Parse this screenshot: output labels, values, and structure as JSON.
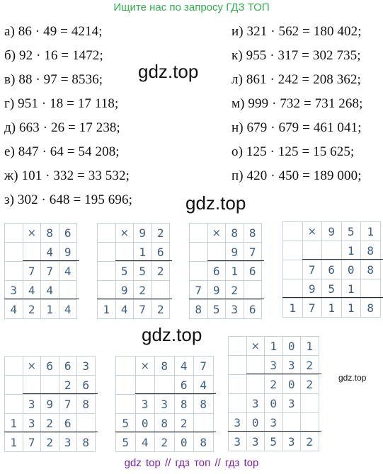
{
  "header": {
    "banner": "Ищите нас по запросу ГДЗ ТОП"
  },
  "equations_left": [
    "а) 86 · 49 = 4214;",
    "б) 92 · 16 = 1472;",
    "в) 88 · 97 = 8536;",
    "г) 951 · 18 = 17 118;",
    "д) 663 · 26 = 17 238;",
    "е) 847 · 64 = 54 208;",
    "ж) 101 · 332 = 33 532;",
    "з) 302 · 648 = 195 696;"
  ],
  "equations_right": [
    "и) 321 · 562 = 180 402;",
    "к) 955 · 317 = 302 735;",
    "л) 861 · 242 = 208 362;",
    "м) 999 · 732 = 731 268;",
    "н) 679 · 679 = 461 041;",
    "о) 125 · 125 = 15 625;",
    "п) 420 · 450 = 189 000;"
  ],
  "watermarks": {
    "main": "gdz.top",
    "small": "gdz.top"
  },
  "computations": [
    {
      "times": "×",
      "rows": [
        [
          "",
          "",
          "8",
          "6"
        ],
        [
          "",
          "",
          "4",
          "9"
        ],
        [
          "",
          "7",
          "7",
          "4"
        ],
        [
          "3",
          "4",
          "4",
          ""
        ],
        [
          "4",
          "2",
          "1",
          "4"
        ]
      ]
    },
    {
      "times": "×",
      "rows": [
        [
          "",
          "",
          "9",
          "2"
        ],
        [
          "",
          "",
          "1",
          "6"
        ],
        [
          "",
          "5",
          "5",
          "2"
        ],
        [
          "",
          "9",
          "2",
          ""
        ],
        [
          "1",
          "4",
          "7",
          "2"
        ]
      ]
    },
    {
      "times": "×",
      "rows": [
        [
          "",
          "",
          "8",
          "8"
        ],
        [
          "",
          "",
          "9",
          "7"
        ],
        [
          "",
          "6",
          "1",
          "6"
        ],
        [
          "7",
          "9",
          "2",
          ""
        ],
        [
          "8",
          "5",
          "3",
          "6"
        ]
      ]
    },
    {
      "times": "×",
      "rows": [
        [
          "",
          "",
          "9",
          "5",
          "1"
        ],
        [
          "",
          "",
          "",
          "1",
          "8"
        ],
        [
          "",
          "7",
          "6",
          "0",
          "8"
        ],
        [
          "",
          "9",
          "5",
          "1",
          ""
        ],
        [
          "1",
          "7",
          "1",
          "1",
          "8"
        ]
      ]
    },
    {
      "times": "×",
      "rows": [
        [
          "",
          "",
          "6",
          "6",
          "3"
        ],
        [
          "",
          "",
          "",
          "2",
          "6"
        ],
        [
          "",
          "3",
          "9",
          "7",
          "8"
        ],
        [
          "1",
          "3",
          "2",
          "6",
          ""
        ],
        [
          "1",
          "7",
          "2",
          "3",
          "8"
        ]
      ]
    },
    {
      "times": "×",
      "rows": [
        [
          "",
          "",
          "8",
          "4",
          "7"
        ],
        [
          "",
          "",
          "",
          "6",
          "4"
        ],
        [
          "",
          "3",
          "3",
          "8",
          "8"
        ],
        [
          "5",
          "0",
          "8",
          "2",
          ""
        ],
        [
          "5",
          "4",
          "2",
          "0",
          "8"
        ]
      ]
    },
    {
      "times": "×",
      "rows": [
        [
          "",
          "",
          "1",
          "0",
          "1"
        ],
        [
          "",
          "",
          "3",
          "3",
          "2"
        ],
        [
          "",
          "",
          "2",
          "0",
          "2"
        ],
        [
          "",
          "3",
          "0",
          "3",
          ""
        ],
        [
          "3",
          "0",
          "3",
          "",
          ""
        ],
        [
          "3",
          "3",
          "5",
          "3",
          "2"
        ]
      ]
    }
  ],
  "footer": {
    "text": "gdz top  //  гдз топ  //  гдз top"
  }
}
